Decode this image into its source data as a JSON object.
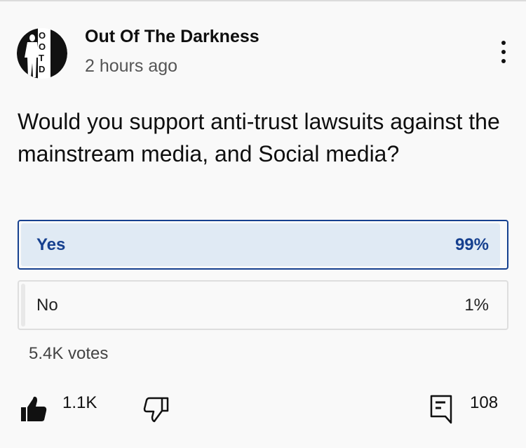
{
  "post": {
    "channel_name": "Out Of The Darkness",
    "time_ago": "2 hours ago",
    "avatar_text": "OOTD",
    "question": "Would you support anti-trust lawsuits against the mainstream media, and Social media?"
  },
  "poll": {
    "options": [
      {
        "label": "Yes",
        "percent_label": "99%",
        "percent": 99,
        "selected": true
      },
      {
        "label": "No",
        "percent_label": "1%",
        "percent": 1,
        "selected": false
      }
    ],
    "votes": "5.4K votes"
  },
  "actions": {
    "likes": "1.1K",
    "comments": "108"
  },
  "colors": {
    "accent": "#16408f",
    "selected_fill": "#e0eaf4"
  },
  "icons": {
    "menu": "more-vert-icon",
    "like": "thumb-up-icon",
    "dislike": "thumb-down-icon",
    "comment": "comment-icon"
  }
}
